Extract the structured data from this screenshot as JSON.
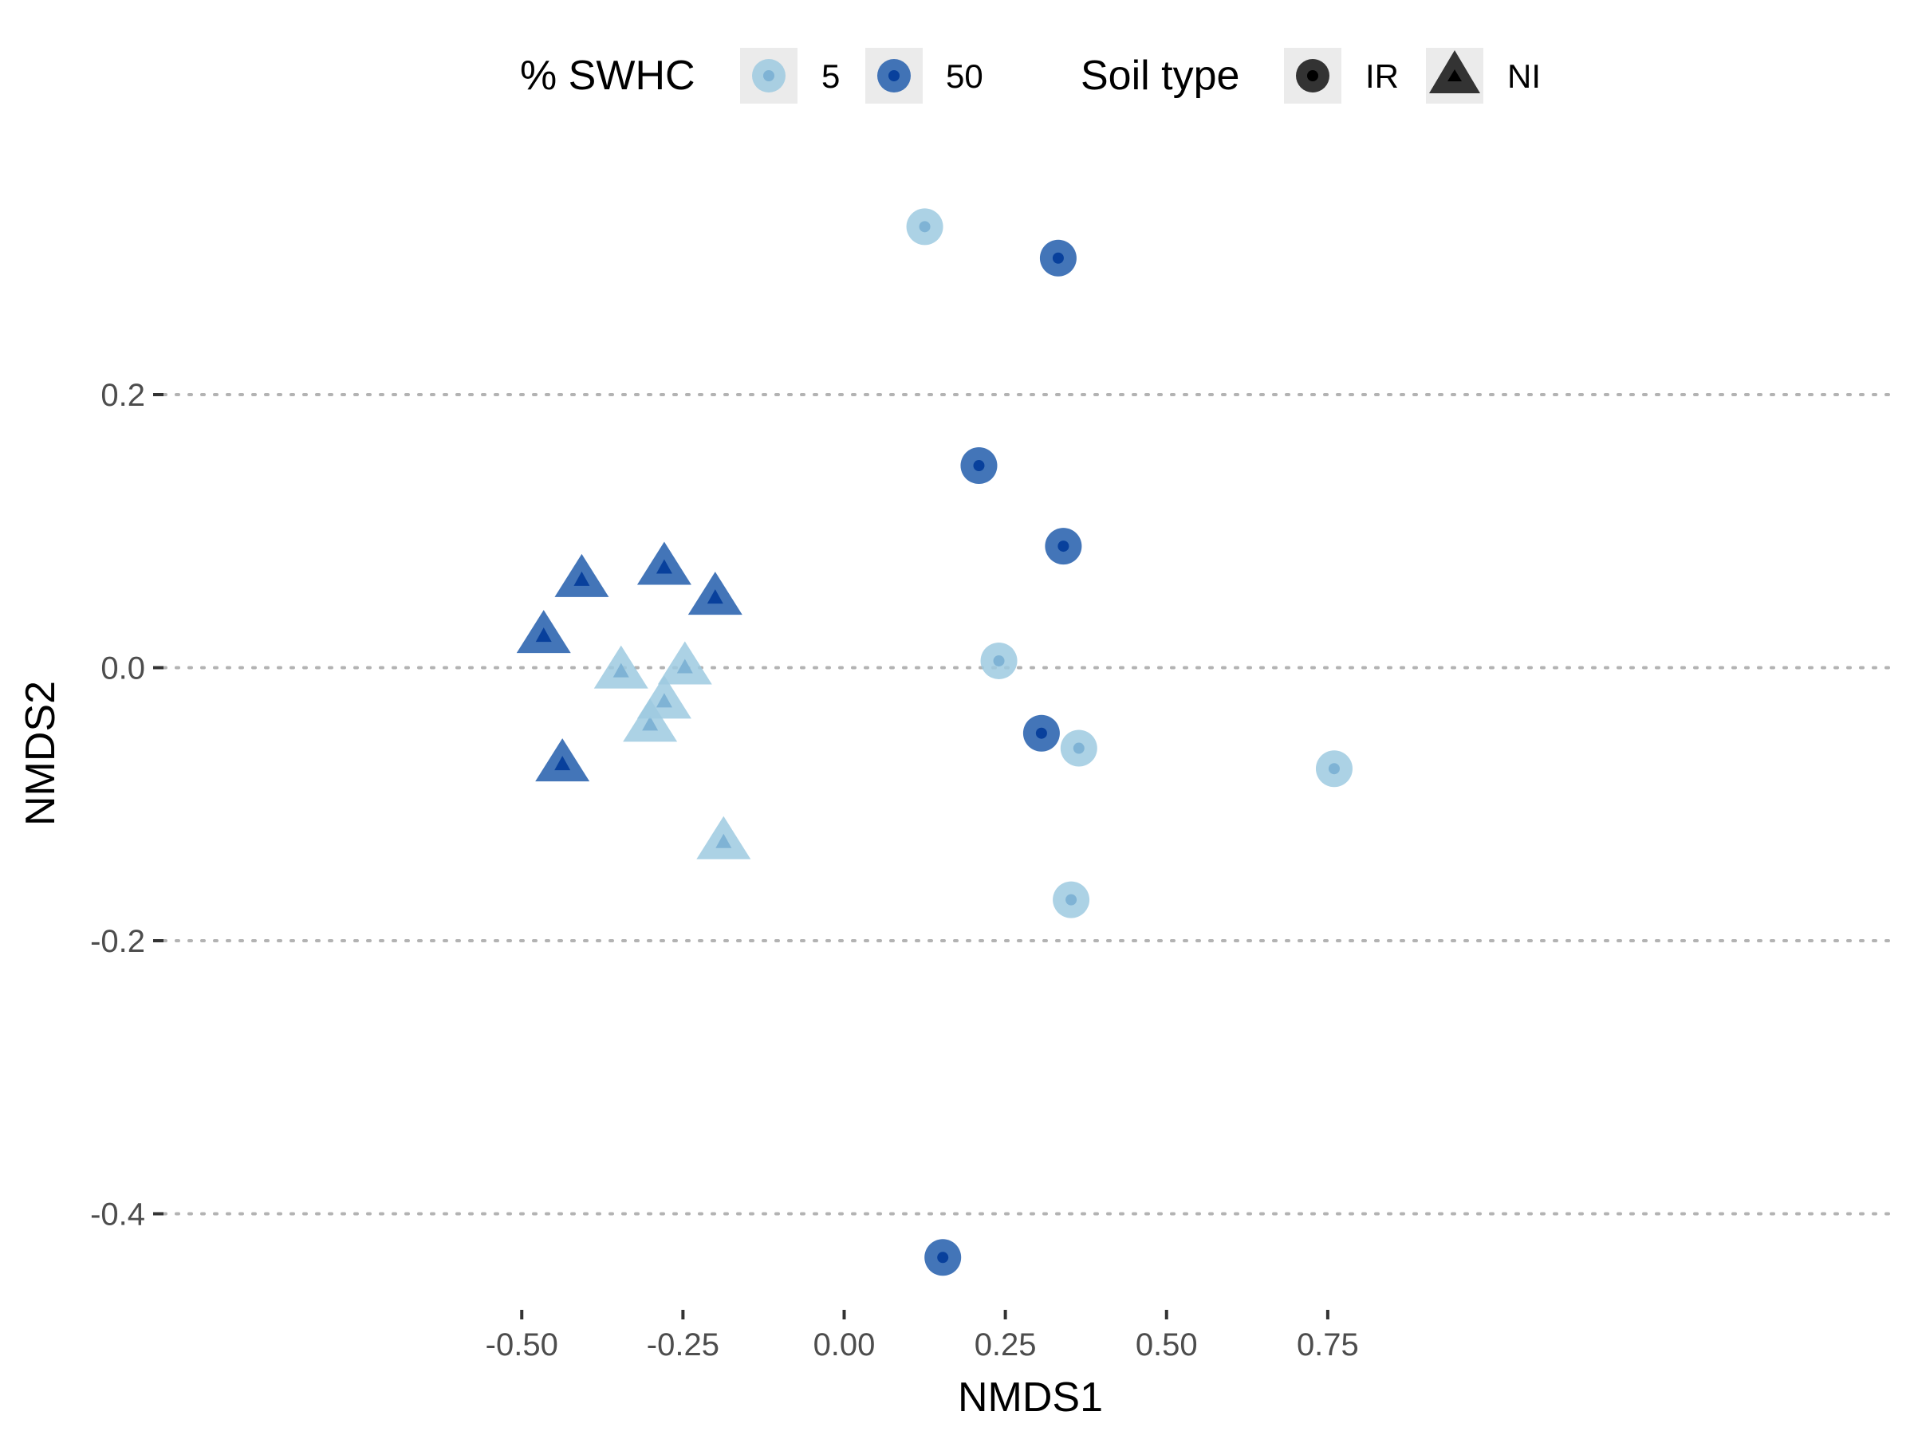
{
  "chart_data": {
    "type": "scatter",
    "xlabel": "NMDS1",
    "ylabel": "NMDS2",
    "xlim": [
      -0.54,
      0.8
    ],
    "ylim": [
      -0.46,
      0.37
    ],
    "x_ticks": [
      -0.5,
      -0.25,
      0.0,
      0.25,
      0.5,
      0.75
    ],
    "x_tick_labels": [
      "-0.50",
      "-0.25",
      "0.00",
      "0.25",
      "0.50",
      "0.75"
    ],
    "y_ticks": [
      0.2,
      0.0,
      -0.2,
      -0.4
    ],
    "y_tick_labels": [
      "0.2",
      "0.0",
      "-0.2",
      "-0.4"
    ],
    "grid": "horizontal-dotted",
    "legend_position": "top",
    "legends": [
      {
        "title": "% SWHC",
        "aesthetic": "color",
        "entries": [
          {
            "label": "5",
            "color": "#9ecae1"
          },
          {
            "label": "50",
            "color": "#2f66b0"
          }
        ]
      },
      {
        "title": "Soil type",
        "aesthetic": "shape",
        "entries": [
          {
            "label": "IR",
            "shape": "circle"
          },
          {
            "label": "NI",
            "shape": "triangle"
          }
        ]
      }
    ],
    "colors": {
      "5": "#9ecae1",
      "50": "#2f66b0",
      "5_dot": "#7fb3d5",
      "50_dot": "#08409c",
      "grid": "#b3b3b3",
      "legend_key_bg": "#ebebeb",
      "legend_shape": "#333333"
    },
    "series": [
      {
        "swhc": "5",
        "soil": "IR",
        "points": [
          {
            "x": 0.125,
            "y": 0.323
          },
          {
            "x": 0.24,
            "y": 0.005
          },
          {
            "x": 0.364,
            "y": -0.059
          },
          {
            "x": 0.352,
            "y": -0.17
          },
          {
            "x": 0.76,
            "y": -0.074
          }
        ]
      },
      {
        "swhc": "50",
        "soil": "IR",
        "points": [
          {
            "x": 0.332,
            "y": 0.3
          },
          {
            "x": 0.209,
            "y": 0.148
          },
          {
            "x": 0.34,
            "y": 0.089
          },
          {
            "x": 0.306,
            "y": -0.048
          },
          {
            "x": 0.153,
            "y": -0.432
          }
        ]
      },
      {
        "swhc": "5",
        "soil": "NI",
        "points": [
          {
            "x": -0.346,
            "y": -0.003
          },
          {
            "x": -0.301,
            "y": -0.042
          },
          {
            "x": -0.279,
            "y": -0.025
          },
          {
            "x": -0.247,
            "y": 0.0
          },
          {
            "x": -0.187,
            "y": -0.128
          }
        ]
      },
      {
        "swhc": "50",
        "soil": "NI",
        "points": [
          {
            "x": -0.466,
            "y": 0.023
          },
          {
            "x": -0.407,
            "y": 0.064
          },
          {
            "x": -0.279,
            "y": 0.073
          },
          {
            "x": -0.2,
            "y": 0.051
          },
          {
            "x": -0.437,
            "y": -0.071
          }
        ]
      }
    ]
  }
}
